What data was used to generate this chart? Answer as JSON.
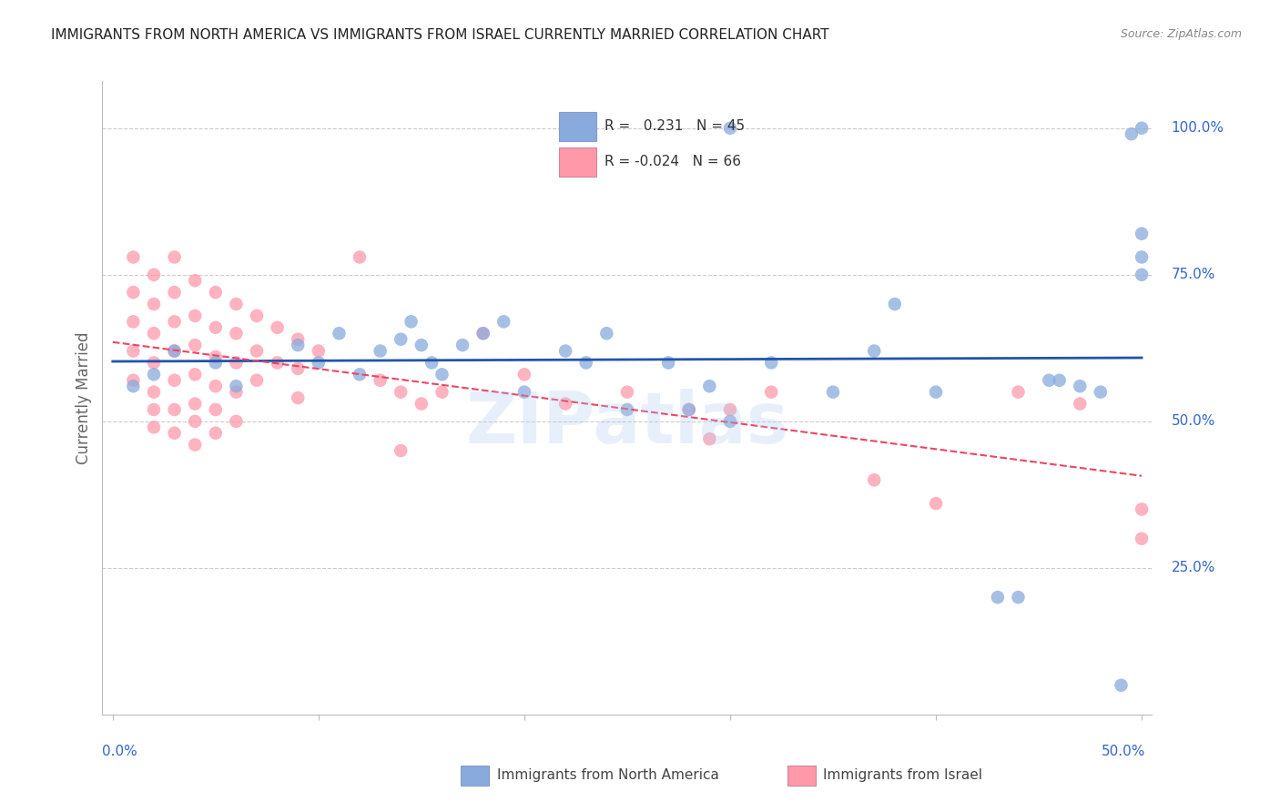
{
  "title": "IMMIGRANTS FROM NORTH AMERICA VS IMMIGRANTS FROM ISRAEL CURRENTLY MARRIED CORRELATION CHART",
  "source": "Source: ZipAtlas.com",
  "ylabel": "Currently Married",
  "color_blue": "#88AADD",
  "color_pink": "#FF99AA",
  "color_blue_line": "#2255AA",
  "color_pink_line": "#EE4466",
  "watermark": "ZIPatlas",
  "blue_x": [
    0.3,
    0.01,
    0.02,
    0.03,
    0.05,
    0.06,
    0.09,
    0.1,
    0.11,
    0.12,
    0.13,
    0.14,
    0.145,
    0.15,
    0.155,
    0.16,
    0.17,
    0.18,
    0.19,
    0.2,
    0.22,
    0.23,
    0.24,
    0.25,
    0.27,
    0.28,
    0.29,
    0.3,
    0.32,
    0.35,
    0.37,
    0.4,
    0.43,
    0.44,
    0.455,
    0.47,
    0.49,
    0.495,
    0.5,
    0.5,
    0.5,
    0.38,
    0.46,
    0.48,
    0.5
  ],
  "blue_y": [
    1.0,
    0.56,
    0.58,
    0.62,
    0.6,
    0.56,
    0.63,
    0.6,
    0.65,
    0.58,
    0.62,
    0.64,
    0.67,
    0.63,
    0.6,
    0.58,
    0.63,
    0.65,
    0.67,
    0.55,
    0.62,
    0.6,
    0.65,
    0.52,
    0.6,
    0.52,
    0.56,
    0.5,
    0.6,
    0.55,
    0.62,
    0.55,
    0.2,
    0.2,
    0.57,
    0.56,
    0.05,
    0.99,
    1.0,
    0.82,
    0.78,
    0.7,
    0.57,
    0.55,
    0.75
  ],
  "pink_x": [
    0.01,
    0.01,
    0.01,
    0.01,
    0.01,
    0.02,
    0.02,
    0.02,
    0.02,
    0.02,
    0.02,
    0.02,
    0.03,
    0.03,
    0.03,
    0.03,
    0.03,
    0.03,
    0.03,
    0.04,
    0.04,
    0.04,
    0.04,
    0.04,
    0.04,
    0.04,
    0.05,
    0.05,
    0.05,
    0.05,
    0.05,
    0.05,
    0.06,
    0.06,
    0.06,
    0.06,
    0.06,
    0.07,
    0.07,
    0.07,
    0.08,
    0.08,
    0.09,
    0.09,
    0.09,
    0.1,
    0.12,
    0.13,
    0.14,
    0.15,
    0.16,
    0.18,
    0.2,
    0.22,
    0.25,
    0.28,
    0.29,
    0.3,
    0.32,
    0.37,
    0.4,
    0.44,
    0.47,
    0.5,
    0.5,
    0.14
  ],
  "pink_y": [
    0.78,
    0.72,
    0.67,
    0.62,
    0.57,
    0.75,
    0.7,
    0.65,
    0.6,
    0.55,
    0.52,
    0.49,
    0.78,
    0.72,
    0.67,
    0.62,
    0.57,
    0.52,
    0.48,
    0.74,
    0.68,
    0.63,
    0.58,
    0.53,
    0.5,
    0.46,
    0.72,
    0.66,
    0.61,
    0.56,
    0.52,
    0.48,
    0.7,
    0.65,
    0.6,
    0.55,
    0.5,
    0.68,
    0.62,
    0.57,
    0.66,
    0.6,
    0.64,
    0.59,
    0.54,
    0.62,
    0.78,
    0.57,
    0.55,
    0.53,
    0.55,
    0.65,
    0.58,
    0.53,
    0.55,
    0.52,
    0.47,
    0.52,
    0.55,
    0.4,
    0.36,
    0.55,
    0.53,
    0.35,
    0.3,
    0.45
  ]
}
